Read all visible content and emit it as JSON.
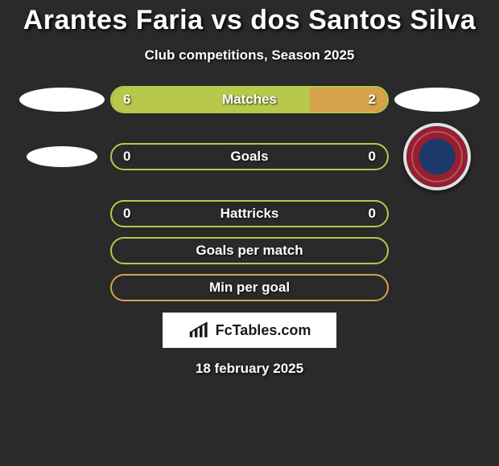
{
  "title": "Arantes Faria vs dos Santos Silva",
  "subtitle": "Club competitions, Season 2025",
  "date": "18 february 2025",
  "logo_text": "FcTables.com",
  "colors": {
    "left_fill": "#b7c84a",
    "right_fill": "#d6a24a",
    "neutral_border": "#b7c84a",
    "bg": "#2a2a2a"
  },
  "bars": [
    {
      "label": "Matches",
      "left": "6",
      "right": "2",
      "left_pct": 72,
      "right_pct": 28,
      "border": "#b7c84a"
    },
    {
      "label": "Goals",
      "left": "0",
      "right": "0",
      "left_pct": 0,
      "right_pct": 0,
      "border": "#b7c84a"
    },
    {
      "label": "Hattricks",
      "left": "0",
      "right": "0",
      "left_pct": 0,
      "right_pct": 0,
      "border": "#b7c84a"
    },
    {
      "label": "Goals per match",
      "left": "",
      "right": "",
      "left_pct": 0,
      "right_pct": 0,
      "border": "#b7c84a"
    },
    {
      "label": "Min per goal",
      "left": "",
      "right": "",
      "left_pct": 0,
      "right_pct": 0,
      "border": "#d6a24a"
    }
  ]
}
